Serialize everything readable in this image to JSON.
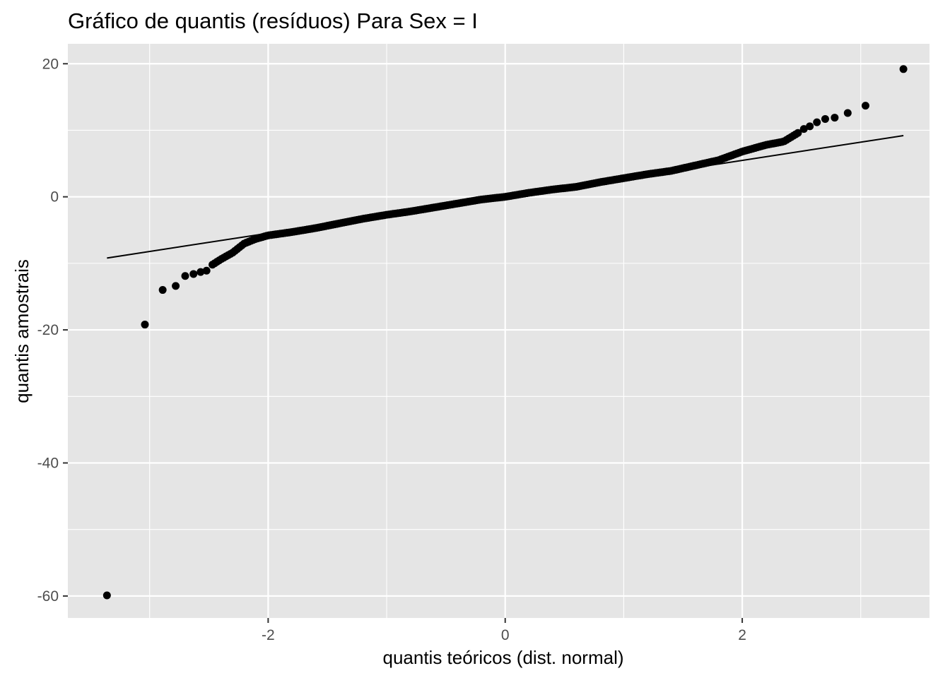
{
  "chart_data": {
    "type": "scatter",
    "title": "Gráfico de quantis (resíduos) Para Sex = I",
    "xlabel": "quantis teóricos (dist. normal)",
    "ylabel": "quantis amostrais",
    "xlim": [
      -3.69,
      3.58
    ],
    "ylim": [
      -63.3,
      23.0
    ],
    "x_ticks": [
      -2,
      0,
      2
    ],
    "x_tick_labels": [
      "-2",
      "0",
      "2"
    ],
    "y_ticks": [
      -60,
      -40,
      -20,
      0,
      20
    ],
    "y_tick_labels": [
      "-60",
      "-40",
      "-20",
      "0",
      "20"
    ],
    "grid": true,
    "background": "#e5e5e5",
    "grid_color": "#ffffff",
    "point_color": "#000000",
    "line_color": "#000000",
    "reference_line": {
      "x": [
        -3.36,
        3.36
      ],
      "y": [
        -9.2,
        9.2
      ]
    },
    "outliers": [
      {
        "x": -3.36,
        "y": -59.9
      },
      {
        "x": -3.04,
        "y": -19.2
      },
      {
        "x": -2.89,
        "y": -14.0
      },
      {
        "x": -2.78,
        "y": -13.4
      },
      {
        "x": -2.7,
        "y": -11.9
      },
      {
        "x": -2.63,
        "y": -11.6
      },
      {
        "x": -2.57,
        "y": -11.3
      },
      {
        "x": -2.52,
        "y": -11.1
      },
      {
        "x": 2.52,
        "y": 10.2
      },
      {
        "x": 2.57,
        "y": 10.6
      },
      {
        "x": 2.63,
        "y": 11.2
      },
      {
        "x": 2.7,
        "y": 11.7
      },
      {
        "x": 2.78,
        "y": 11.9
      },
      {
        "x": 2.89,
        "y": 12.6
      },
      {
        "x": 3.04,
        "y": 13.7
      },
      {
        "x": 3.36,
        "y": 19.2
      }
    ],
    "main_curve": [
      {
        "x": -2.47,
        "y": -10.2
      },
      {
        "x": -2.4,
        "y": -9.4
      },
      {
        "x": -2.3,
        "y": -8.4
      },
      {
        "x": -2.2,
        "y": -7.0
      },
      {
        "x": -2.1,
        "y": -6.3
      },
      {
        "x": -2.0,
        "y": -5.8
      },
      {
        "x": -1.8,
        "y": -5.3
      },
      {
        "x": -1.6,
        "y": -4.7
      },
      {
        "x": -1.4,
        "y": -4.0
      },
      {
        "x": -1.2,
        "y": -3.3
      },
      {
        "x": -1.0,
        "y": -2.7
      },
      {
        "x": -0.8,
        "y": -2.2
      },
      {
        "x": -0.6,
        "y": -1.6
      },
      {
        "x": -0.4,
        "y": -1.0
      },
      {
        "x": -0.2,
        "y": -0.4
      },
      {
        "x": 0.0,
        "y": 0.0
      },
      {
        "x": 0.2,
        "y": 0.6
      },
      {
        "x": 0.4,
        "y": 1.1
      },
      {
        "x": 0.6,
        "y": 1.5
      },
      {
        "x": 0.8,
        "y": 2.2
      },
      {
        "x": 1.0,
        "y": 2.8
      },
      {
        "x": 1.2,
        "y": 3.4
      },
      {
        "x": 1.4,
        "y": 3.9
      },
      {
        "x": 1.6,
        "y": 4.7
      },
      {
        "x": 1.8,
        "y": 5.5
      },
      {
        "x": 2.0,
        "y": 6.8
      },
      {
        "x": 2.2,
        "y": 7.8
      },
      {
        "x": 2.35,
        "y": 8.3
      },
      {
        "x": 2.47,
        "y": 9.6
      }
    ]
  }
}
